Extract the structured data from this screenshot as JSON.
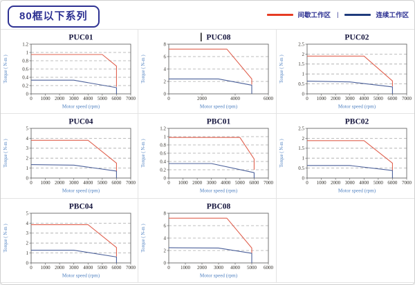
{
  "header": {
    "title": "80框以下系列"
  },
  "legend": {
    "intermittent_label": "间歇工作区",
    "separator": "|",
    "continuous_label": "连续工作区",
    "intermittent_color": "#e63b22",
    "continuous_color": "#1f3b7c"
  },
  "colors": {
    "chart_red": "#e0604e",
    "chart_blue": "#4a5f99",
    "axis_border": "#666666",
    "gridline": "#a8a8a8",
    "tick_text": "#33302a",
    "axis_label_blue": "#4d7fc0",
    "title_text": "#15153d"
  },
  "chart_data": [
    {
      "type": "line",
      "title": "PUC01",
      "title_cursor": false,
      "xlabel": "Motor speed (rpm)",
      "ylabel": "Torque ( N-m )",
      "xlim": [
        0,
        7000
      ],
      "ylim": [
        0,
        1.2
      ],
      "xticks": [
        0,
        1000,
        2000,
        3000,
        4000,
        5000,
        6000,
        7000
      ],
      "yticks": [
        0,
        0.2,
        0.4,
        0.6,
        0.8,
        1,
        1.2
      ],
      "grid": "horizontal-dashed",
      "legend_position": "none",
      "series": [
        {
          "name": "间歇工作区",
          "color": "#e0604e",
          "points": [
            [
              0,
              0.95
            ],
            [
              5000,
              0.95
            ],
            [
              6000,
              0.67
            ],
            [
              6000,
              0.17
            ]
          ]
        },
        {
          "name": "连续工作区",
          "color": "#4a5f99",
          "points": [
            [
              0,
              0.33
            ],
            [
              3000,
              0.33
            ],
            [
              6000,
              0.15
            ],
            [
              6000,
              0
            ]
          ]
        }
      ]
    },
    {
      "type": "line",
      "title": "PUC08",
      "title_cursor": true,
      "xlabel": "Motor speed (rpm)",
      "ylabel": "Torque ( N-m )",
      "xlim": [
        0,
        6000
      ],
      "ylim": [
        0,
        8
      ],
      "xticks": [
        0,
        2000,
        4000,
        6000
      ],
      "yticks": [
        0,
        2,
        4,
        6,
        8
      ],
      "grid": "horizontal-dashed",
      "legend_position": "none",
      "series": [
        {
          "name": "间歇工作区",
          "color": "#e0604e",
          "points": [
            [
              0,
              7.2
            ],
            [
              3500,
              7.2
            ],
            [
              5000,
              2.4
            ],
            [
              5000,
              1.5
            ]
          ]
        },
        {
          "name": "连续工作区",
          "color": "#4a5f99",
          "points": [
            [
              0,
              2.4
            ],
            [
              3000,
              2.4
            ],
            [
              5000,
              1.4
            ],
            [
              5000,
              0
            ]
          ]
        }
      ]
    },
    {
      "type": "line",
      "title": "PUC02",
      "title_cursor": false,
      "xlabel": "Motor speed (rpm)",
      "ylabel": "Torque ( N-m )",
      "xlim": [
        0,
        7000
      ],
      "ylim": [
        0,
        2.5
      ],
      "xticks": [
        0,
        1000,
        2000,
        3000,
        4000,
        5000,
        6000,
        7000
      ],
      "yticks": [
        0,
        0.5,
        1,
        1.5,
        2,
        2.5
      ],
      "grid": "horizontal-dashed",
      "legend_position": "none",
      "series": [
        {
          "name": "间歇工作区",
          "color": "#e0604e",
          "points": [
            [
              0,
              1.9
            ],
            [
              4000,
              1.9
            ],
            [
              6000,
              0.65
            ],
            [
              6000,
              0.38
            ]
          ]
        },
        {
          "name": "连续工作区",
          "color": "#4a5f99",
          "points": [
            [
              0,
              0.64
            ],
            [
              3000,
              0.6
            ],
            [
              6000,
              0.35
            ],
            [
              6000,
              0
            ]
          ]
        }
      ]
    },
    {
      "type": "line",
      "title": "PUC04",
      "title_cursor": false,
      "xlabel": "Motor speed (rpm)",
      "ylabel": "Torque ( N-m )",
      "xlim": [
        0,
        7000
      ],
      "ylim": [
        0,
        5
      ],
      "xticks": [
        0,
        1000,
        2000,
        3000,
        4000,
        5000,
        6000,
        7000
      ],
      "yticks": [
        0,
        1,
        2,
        3,
        4,
        5
      ],
      "grid": "horizontal-dashed",
      "legend_position": "none",
      "series": [
        {
          "name": "间歇工作区",
          "color": "#e0604e",
          "points": [
            [
              0,
              3.8
            ],
            [
              4000,
              3.8
            ],
            [
              6000,
              1.5
            ],
            [
              6000,
              0.7
            ]
          ]
        },
        {
          "name": "连续工作区",
          "color": "#4a5f99",
          "points": [
            [
              0,
              1.35
            ],
            [
              3000,
              1.3
            ],
            [
              6000,
              0.7
            ],
            [
              6000,
              0
            ]
          ]
        }
      ]
    },
    {
      "type": "line",
      "title": "PBC01",
      "title_cursor": false,
      "xlabel": "Motor speed (rpm)",
      "ylabel": "Torque ( N-m )",
      "xlim": [
        0,
        7000
      ],
      "ylim": [
        0,
        1.2
      ],
      "xticks": [
        0,
        1000,
        2000,
        3000,
        4000,
        5000,
        6000,
        7000
      ],
      "yticks": [
        0,
        0.2,
        0.4,
        0.6,
        0.8,
        1,
        1.2
      ],
      "grid": "horizontal-dashed",
      "legend_position": "none",
      "series": [
        {
          "name": "间歇工作区",
          "color": "#e0604e",
          "points": [
            [
              0,
              0.98
            ],
            [
              5000,
              0.98
            ],
            [
              6000,
              0.46
            ],
            [
              6000,
              0.2
            ]
          ]
        },
        {
          "name": "连续工作区",
          "color": "#4a5f99",
          "points": [
            [
              0,
              0.35
            ],
            [
              3000,
              0.35
            ],
            [
              6000,
              0.13
            ],
            [
              6000,
              0
            ]
          ]
        }
      ]
    },
    {
      "type": "line",
      "title": "PBC02",
      "title_cursor": false,
      "xlabel": "Motor speed (rpm)",
      "ylabel": "Torque ( N-m )",
      "xlim": [
        0,
        7000
      ],
      "ylim": [
        0,
        2.5
      ],
      "xticks": [
        0,
        1000,
        2000,
        3000,
        4000,
        5000,
        6000,
        7000
      ],
      "yticks": [
        0,
        0.5,
        1,
        1.5,
        2,
        2.5
      ],
      "grid": "horizontal-dashed",
      "legend_position": "none",
      "series": [
        {
          "name": "间歇工作区",
          "color": "#e0604e",
          "points": [
            [
              0,
              1.88
            ],
            [
              4000,
              1.88
            ],
            [
              6000,
              0.75
            ],
            [
              6000,
              0.38
            ]
          ]
        },
        {
          "name": "连续工作区",
          "color": "#4a5f99",
          "points": [
            [
              0,
              0.63
            ],
            [
              3000,
              0.63
            ],
            [
              6000,
              0.38
            ],
            [
              6000,
              0
            ]
          ]
        }
      ]
    },
    {
      "type": "line",
      "title": "PBC04",
      "title_cursor": false,
      "xlabel": "Motor speed (rpm)",
      "ylabel": "Torque ( N-m )",
      "xlim": [
        0,
        7000
      ],
      "ylim": [
        0,
        5
      ],
      "xticks": [
        0,
        1000,
        2000,
        3000,
        4000,
        5000,
        6000,
        7000
      ],
      "yticks": [
        0,
        1,
        2,
        3,
        4,
        5
      ],
      "grid": "horizontal-dashed",
      "legend_position": "none",
      "series": [
        {
          "name": "间歇工作区",
          "color": "#e0604e",
          "points": [
            [
              0,
              3.85
            ],
            [
              4000,
              3.85
            ],
            [
              6000,
              1.55
            ],
            [
              6000,
              0.65
            ]
          ]
        },
        {
          "name": "连续工作区",
          "color": "#4a5f99",
          "points": [
            [
              0,
              1.28
            ],
            [
              3000,
              1.28
            ],
            [
              6000,
              0.6
            ],
            [
              6000,
              0
            ]
          ]
        }
      ]
    },
    {
      "type": "line",
      "title": "PBC08",
      "title_cursor": false,
      "xlabel": "Motor speed (rpm)",
      "ylabel": "Torque ( N-m )",
      "xlim": [
        0,
        6000
      ],
      "ylim": [
        0,
        8
      ],
      "xticks": [
        0,
        1000,
        2000,
        3000,
        4000,
        5000,
        6000
      ],
      "yticks": [
        0,
        2,
        4,
        6,
        8
      ],
      "grid": "horizontal-dashed",
      "legend_position": "none",
      "series": [
        {
          "name": "间歇工作区",
          "color": "#e0604e",
          "points": [
            [
              0,
              7.2
            ],
            [
              3500,
              7.2
            ],
            [
              5000,
              2.4
            ],
            [
              5000,
              1.6
            ]
          ]
        },
        {
          "name": "连续工作区",
          "color": "#4a5f99",
          "points": [
            [
              0,
              2.45
            ],
            [
              3000,
              2.4
            ],
            [
              5000,
              1.55
            ],
            [
              5000,
              0
            ]
          ]
        }
      ]
    }
  ]
}
